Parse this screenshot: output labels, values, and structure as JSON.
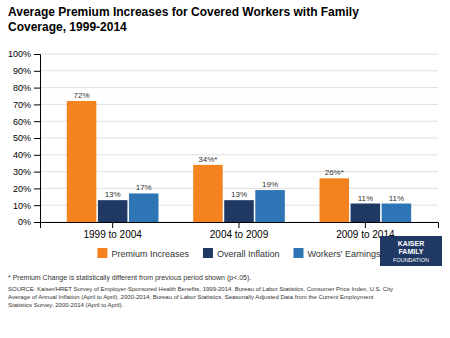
{
  "chart_data": {
    "type": "bar",
    "title": "Average Premium Increases for Covered Workers with Family\nCoverage, 1999-2014",
    "categories": [
      "1999 to 2004",
      "2004 to 2009",
      "2009 to 2014"
    ],
    "series": [
      {
        "name": "Premium Increases",
        "color": "#F4821F",
        "values": [
          72,
          34,
          26
        ],
        "value_labels": [
          "72%",
          "34%*",
          "26%*"
        ]
      },
      {
        "name": "Overall Inflation",
        "color": "#1F3864",
        "values": [
          13,
          13,
          11
        ],
        "value_labels": [
          "13%",
          "13%",
          "11%"
        ]
      },
      {
        "name": "Workers' Earnings",
        "color": "#2E75B6",
        "values": [
          17,
          19,
          11
        ],
        "value_labels": [
          "17%",
          "19%",
          "11%"
        ]
      }
    ],
    "ylim": [
      0,
      100
    ],
    "yticks": [
      {
        "value": 0,
        "label": "0%"
      },
      {
        "value": 10,
        "label": "10%"
      },
      {
        "value": 20,
        "label": "20%"
      },
      {
        "value": 30,
        "label": "30%"
      },
      {
        "value": 40,
        "label": "40%"
      },
      {
        "value": 50,
        "label": "50%"
      },
      {
        "value": 60,
        "label": "60%"
      },
      {
        "value": 70,
        "label": "70%"
      },
      {
        "value": 80,
        "label": "80%"
      },
      {
        "value": 90,
        "label": "90%"
      },
      {
        "value": 100,
        "label": "100%"
      }
    ],
    "grid": true,
    "legend": "bottom",
    "data_labels": true,
    "annotations": [
      "* Premium Change is statistically different from previous period shown (p<.05).",
      "SOURCE:  Kaiser/HRET Survey of Employer-Sponsored Health Benefits, 1999-2014. Bureau of Labor Statistics, Consumer Price Index, U.S. City\nAverage of Annual Inflation (April to April), 2000-2014; Bureau of Labor Statistics, Seasonally Adjusted Data from the Current Employment\nStatistics Survey, 2000-2014 (April to April).",
      "KAISER",
      "FAMILY",
      "FOUNDATION"
    ]
  }
}
